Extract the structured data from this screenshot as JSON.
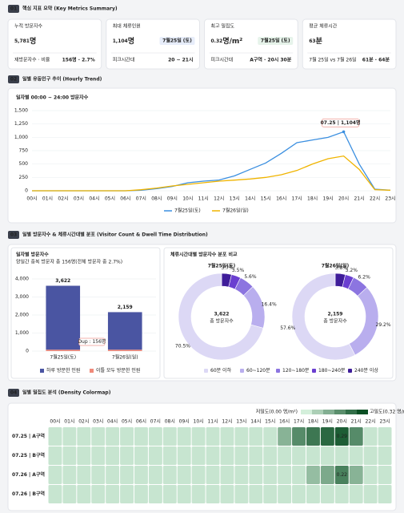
{
  "sections": [
    {
      "number": "01",
      "title": "핵심 지표 요약 (Key Metrics Summary)"
    },
    {
      "number": "02",
      "title": "일별 유동인구 추이 (Hourly Trend)"
    },
    {
      "number": "03",
      "title": "일별 방문자수 & 체류시간대별 분포 (Visitor Count & Dwell Time Distribution)",
      "right_title": "체류시간대별 방문자수 분포 비교"
    },
    {
      "number": "04",
      "title": "일별 밀집도 분석 (Density Colormap)"
    }
  ],
  "cards": [
    {
      "label": "누적 방문자수",
      "value": "5,781",
      "unit": "명",
      "foot_label": "재방문자수 · 비율",
      "foot_value": "156명 · 2.7%"
    },
    {
      "label": "최대 체류인원",
      "value": "1,104",
      "unit": "명",
      "badge": "7월25일 (토)",
      "badge_color": "#3b6fd8",
      "foot_label": "피크시간대",
      "foot_value": "20 ~ 21시"
    },
    {
      "label": "최고 밀집도",
      "value": "0.32",
      "unit": "명/m²",
      "badge": "7월25일 (토)",
      "badge_color": "#2e9e4f",
      "foot_label": "피크시간대",
      "foot_value": "A구역 · 20시 30분"
    },
    {
      "label": "평균 체류시간",
      "value": "63",
      "unit": "분",
      "foot_label": "7월 25일 vs 7월 26일",
      "foot_value": "61분 · 64분"
    }
  ],
  "chart_data": [
    {
      "type": "line",
      "title": "일자별 00:00 ~ 24:00 방문자수",
      "categories": [
        "00시",
        "01시",
        "02시",
        "03시",
        "04시",
        "05시",
        "06시",
        "07시",
        "08시",
        "09시",
        "10시",
        "11시",
        "12시",
        "13시",
        "14시",
        "15시",
        "16시",
        "17시",
        "18시",
        "19시",
        "20시",
        "21시",
        "22시",
        "23시"
      ],
      "series": [
        {
          "name": "7월25일(토)",
          "color": "#3b8fe0",
          "values": [
            0,
            0,
            0,
            0,
            0,
            0,
            0,
            10,
            40,
            80,
            150,
            180,
            200,
            280,
            400,
            520,
            700,
            900,
            950,
            1000,
            1104,
            500,
            30,
            10
          ]
        },
        {
          "name": "7월26일(일)",
          "color": "#f0b400",
          "values": [
            0,
            0,
            0,
            0,
            0,
            0,
            0,
            20,
            50,
            90,
            120,
            150,
            180,
            200,
            220,
            250,
            300,
            380,
            500,
            600,
            650,
            400,
            20,
            10
          ]
        }
      ],
      "annotation": "07.25 | 1,104명",
      "ylim": [
        0,
        1500
      ],
      "yticks": [
        0,
        250,
        500,
        750,
        {
          "value": 1000,
          "label": "1,000"
        },
        {
          "value": 1250,
          "label": "1,250"
        },
        {
          "value": 1500,
          "label": "1,500"
        }
      ],
      "grid": true
    },
    {
      "type": "stacked_bar",
      "title": "일자별 방문자수",
      "subtitle": "양일간 중복 방문자 총 156명(전체 방문자 중 2.7%)",
      "categories": [
        "7월25일(토)",
        "7월26일(일)"
      ],
      "series": [
        {
          "name": "하루 방문한 인원",
          "color": "#4a55a2",
          "values": [
            3544,
            2081
          ]
        },
        {
          "name": "이틀 모두 방문한 인원",
          "color": "#f08a7a",
          "values": [
            78,
            78
          ]
        }
      ],
      "totals": [
        {
          "value": 3622,
          "label": "3,622"
        },
        {
          "value": 2159,
          "label": "2,159"
        }
      ],
      "annotation": "Dup : 156명",
      "ylim": [
        0,
        4000
      ],
      "yticks": [
        0,
        {
          "value": 1000,
          "label": "1,000"
        },
        {
          "value": 2000,
          "label": "2,000"
        },
        {
          "value": 3000,
          "label": "3,000"
        },
        {
          "value": 4000,
          "label": "4,000"
        }
      ],
      "grid": true
    },
    {
      "type": "donut",
      "title": "7월25일(토)",
      "center_value": "3,622",
      "center_label": "총 방문자수",
      "categories": [
        "240분 이상",
        "180~240분",
        "120~180분",
        "60~120분",
        "60분 이하"
      ],
      "colors": [
        "#3f1d9a",
        "#6a3fd0",
        "#8c75e0",
        "#b9aeee",
        "#dcd8f5"
      ],
      "values": [
        3.7,
        3.5,
        5.6,
        16.4,
        70.5
      ],
      "value_labels": [
        "3.7%",
        "3.5%",
        "5.6%",
        "16.4%",
        "70.5%"
      ]
    },
    {
      "type": "donut",
      "title": "7월26일(일)",
      "center_value": "2,159",
      "center_label": "총 방문자수",
      "categories": [
        "240분 이상",
        "180~240분",
        "120~180분",
        "60~120분",
        "60분 이하"
      ],
      "colors": [
        "#3f1d9a",
        "#6a3fd0",
        "#8c75e0",
        "#b9aeee",
        "#dcd8f5"
      ],
      "values": [
        3.8,
        3.2,
        6.2,
        29.2,
        57.6
      ],
      "value_labels": [
        "3.8%",
        "3.2%",
        "6.2%",
        "29.2%",
        "57.6%"
      ]
    },
    {
      "type": "heatmap",
      "x": [
        "00시",
        "01시",
        "02시",
        "03시",
        "04시",
        "05시",
        "06시",
        "07시",
        "08시",
        "09시",
        "10시",
        "11시",
        "12시",
        "13시",
        "14시",
        "15시",
        "16시",
        "17시",
        "18시",
        "19시",
        "20시",
        "21시",
        "22시",
        "23시"
      ],
      "y": [
        "07.25 | A구역",
        "07.25 | B구역",
        "07.26 | A구역",
        "07.26 | B구역"
      ],
      "values": [
        [
          0.02,
          0.02,
          0.02,
          0.02,
          0.02,
          0.02,
          0.02,
          0.02,
          0.02,
          0.02,
          0.02,
          0.02,
          0.02,
          0.02,
          0.02,
          0.02,
          0.12,
          0.2,
          0.24,
          0.27,
          0.29,
          0.2,
          0.02,
          0.02
        ],
        [
          0.02,
          0.02,
          0.02,
          0.02,
          0.02,
          0.02,
          0.02,
          0.02,
          0.02,
          0.02,
          0.02,
          0.02,
          0.02,
          0.02,
          0.02,
          0.02,
          0.02,
          0.02,
          0.02,
          0.02,
          0.02,
          0.02,
          0.02,
          0.02
        ],
        [
          0.02,
          0.02,
          0.02,
          0.02,
          0.02,
          0.02,
          0.02,
          0.02,
          0.02,
          0.02,
          0.02,
          0.02,
          0.02,
          0.02,
          0.02,
          0.02,
          0.02,
          0.02,
          0.1,
          0.14,
          0.22,
          0.12,
          0.02,
          0.02
        ],
        [
          0.02,
          0.02,
          0.02,
          0.02,
          0.02,
          0.02,
          0.02,
          0.02,
          0.02,
          0.02,
          0.02,
          0.02,
          0.02,
          0.02,
          0.02,
          0.02,
          0.02,
          0.02,
          0.02,
          0.02,
          0.02,
          0.02,
          0.02,
          0.02
        ]
      ],
      "labeled_cells": [
        [
          0,
          20
        ],
        [
          2,
          20
        ]
      ],
      "zlim": [
        0,
        0.32
      ],
      "color_range": [
        "#d4efdb",
        "#0a4f24"
      ],
      "scale_low": "저밀도(0.00 명/m²)",
      "scale_high": "고밀도(0.32 명/m²)"
    }
  ]
}
